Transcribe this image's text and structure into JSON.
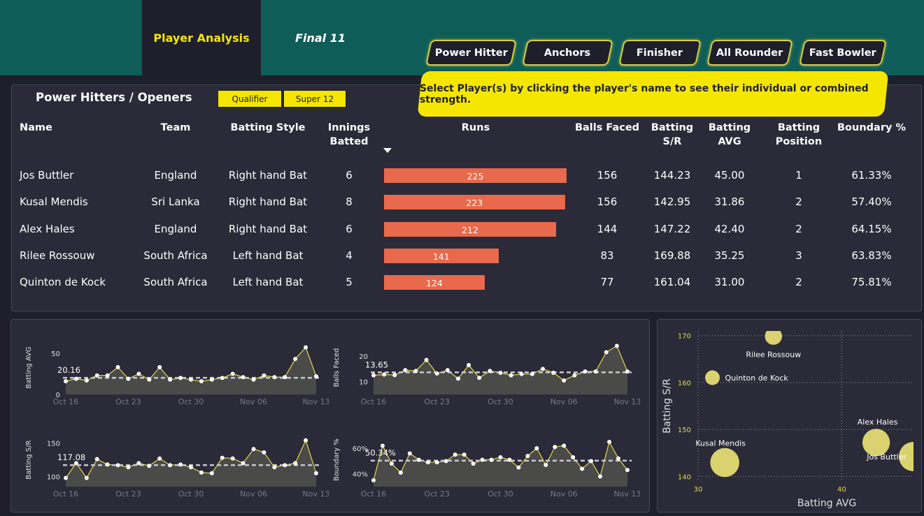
{
  "nav": {
    "tabs": [
      {
        "label": "Player Analysis"
      },
      {
        "label": "Final 11"
      }
    ]
  },
  "player_types": [
    {
      "label": "Power Hitter"
    },
    {
      "label": "Anchors"
    },
    {
      "label": "Finisher"
    },
    {
      "label": "All Rounder"
    },
    {
      "label": "Fast Bowler"
    }
  ],
  "callout": "Select Player(s) by clicking the player's name to see their individual or combined strength.",
  "section": {
    "title": "Power Hitters / Openers",
    "filters": [
      {
        "label": "Qualifier"
      },
      {
        "label": "Super 12"
      }
    ]
  },
  "table": {
    "headers": {
      "name": "Name",
      "team": "Team",
      "style": "Batting Style",
      "innings_1": "Innings",
      "innings_2": "Batted",
      "runs": "Runs",
      "balls": "Balls Faced",
      "sr_1": "Batting",
      "sr_2": "S/R",
      "avg_1": "Batting",
      "avg_2": "AVG",
      "pos_1": "Batting",
      "pos_2": "Position",
      "boundary": "Boundary %"
    },
    "runs_max": 225,
    "rows": [
      {
        "name": "Jos Buttler",
        "team": "England",
        "style": "Right hand Bat",
        "innings": "6",
        "runs": 225,
        "runs_label": "225",
        "balls": "156",
        "sr": "144.23",
        "avg": "45.00",
        "pos": "1",
        "boundary": "61.33%"
      },
      {
        "name": "Kusal Mendis",
        "team": "Sri Lanka",
        "style": "Right hand Bat",
        "innings": "8",
        "runs": 223,
        "runs_label": "223",
        "balls": "156",
        "sr": "142.95",
        "avg": "31.86",
        "pos": "2",
        "boundary": "57.40%"
      },
      {
        "name": "Alex Hales",
        "team": "England",
        "style": "Right hand Bat",
        "innings": "6",
        "runs": 212,
        "runs_label": "212",
        "balls": "144",
        "sr": "147.22",
        "avg": "42.40",
        "pos": "2",
        "boundary": "64.15%"
      },
      {
        "name": "Rilee Rossouw",
        "team": "South Africa",
        "style": "Left hand Bat",
        "innings": "4",
        "runs": 141,
        "runs_label": "141",
        "balls": "83",
        "sr": "169.88",
        "avg": "35.25",
        "pos": "3",
        "boundary": "63.83%"
      },
      {
        "name": "Quinton de Kock",
        "team": "South Africa",
        "style": "Left hand Bat",
        "innings": "5",
        "runs": 124,
        "runs_label": "124",
        "balls": "77",
        "sr": "161.04",
        "avg": "31.00",
        "pos": "2",
        "boundary": "75.81%"
      }
    ]
  },
  "colors": {
    "accent": "#f5e600",
    "bar": "#e8694b",
    "header": "#0f5d58",
    "bubble": "#d9d26e"
  },
  "chart_data": [
    {
      "type": "area",
      "ylabel": "Batting AVG",
      "xticks": [
        "Oct 16",
        "Oct 23",
        "Oct 30",
        "Nov 06",
        "Nov 13"
      ],
      "ytick_labels": [
        "0",
        "50"
      ],
      "yticks": [
        0,
        50
      ],
      "ylim": [
        0,
        65
      ],
      "avg": 20.16,
      "avg_label": "20.16",
      "values": [
        16,
        19,
        17,
        23,
        23,
        33,
        19,
        25,
        18,
        33,
        18,
        20,
        18,
        16,
        18,
        20,
        25,
        21,
        18,
        23,
        21,
        21,
        43,
        57,
        22
      ]
    },
    {
      "type": "area",
      "ylabel": "Balls Faced",
      "xticks": [
        "Oct 16",
        "Oct 23",
        "Oct 30",
        "Nov 06",
        "Nov 13"
      ],
      "ytick_labels": [
        "10",
        "20"
      ],
      "yticks": [
        10,
        20
      ],
      "ylim": [
        5,
        26
      ],
      "avg": 13.65,
      "avg_label": "13.65",
      "values": [
        12.5,
        12.8,
        12.6,
        14.5,
        14.2,
        18.5,
        13.2,
        14.5,
        11.2,
        16.5,
        11.5,
        14.2,
        13.5,
        12.5,
        13.0,
        13.0,
        15.0,
        13.5,
        10.5,
        12.5,
        14.0,
        14.0,
        21.5,
        24.0,
        14.0
      ]
    },
    {
      "type": "area",
      "ylabel": "Batting S/R",
      "xticks": [
        "Oct 16",
        "Oct 23",
        "Oct 30",
        "Nov 06",
        "Nov 13"
      ],
      "ytick_labels": [
        "100",
        "150"
      ],
      "yticks": [
        100,
        150
      ],
      "ylim": [
        85,
        165
      ],
      "avg": 117.08,
      "avg_label": "117.08",
      "values": [
        98,
        120,
        98,
        126,
        118,
        117,
        114,
        120,
        116,
        127,
        117,
        118,
        114,
        106,
        105,
        128,
        127,
        120,
        141,
        136,
        114,
        117,
        120,
        154,
        105
      ]
    },
    {
      "type": "area",
      "ylabel": "Boundary %",
      "xticks": [
        "Oct 16",
        "Oct 23",
        "Oct 30",
        "Nov 06",
        "Nov 13"
      ],
      "ytick_labels": [
        "40%",
        "60%"
      ],
      "yticks": [
        40,
        60
      ],
      "ylim": [
        30,
        72
      ],
      "avg": 50.34,
      "avg_label": "50.34%",
      "values": [
        35,
        62,
        48,
        41,
        56,
        51,
        49,
        49,
        50,
        55,
        55,
        48,
        51,
        51,
        53,
        51,
        45,
        54,
        60,
        47,
        61,
        62,
        53,
        44,
        50,
        38,
        65,
        52,
        43
      ]
    },
    {
      "type": "scatter",
      "xlabel": "Batting AVG",
      "ylabel": "Batting S/R",
      "xlim": [
        30,
        45
      ],
      "ylim": [
        139,
        171
      ],
      "xticks": [
        30,
        40
      ],
      "yticks": [
        140,
        150,
        160,
        170
      ],
      "points": [
        {
          "name": "Jos Buttler",
          "x": 45.0,
          "y": 144.23,
          "size": 225
        },
        {
          "name": "Kusal Mendis",
          "x": 31.86,
          "y": 142.95,
          "size": 223
        },
        {
          "name": "Alex Hales",
          "x": 42.4,
          "y": 147.22,
          "size": 212
        },
        {
          "name": "Rilee Rossouw",
          "x": 35.25,
          "y": 169.88,
          "size": 141
        },
        {
          "name": "Quinton de Kock",
          "x": 31.0,
          "y": 161.04,
          "size": 124
        }
      ]
    }
  ]
}
